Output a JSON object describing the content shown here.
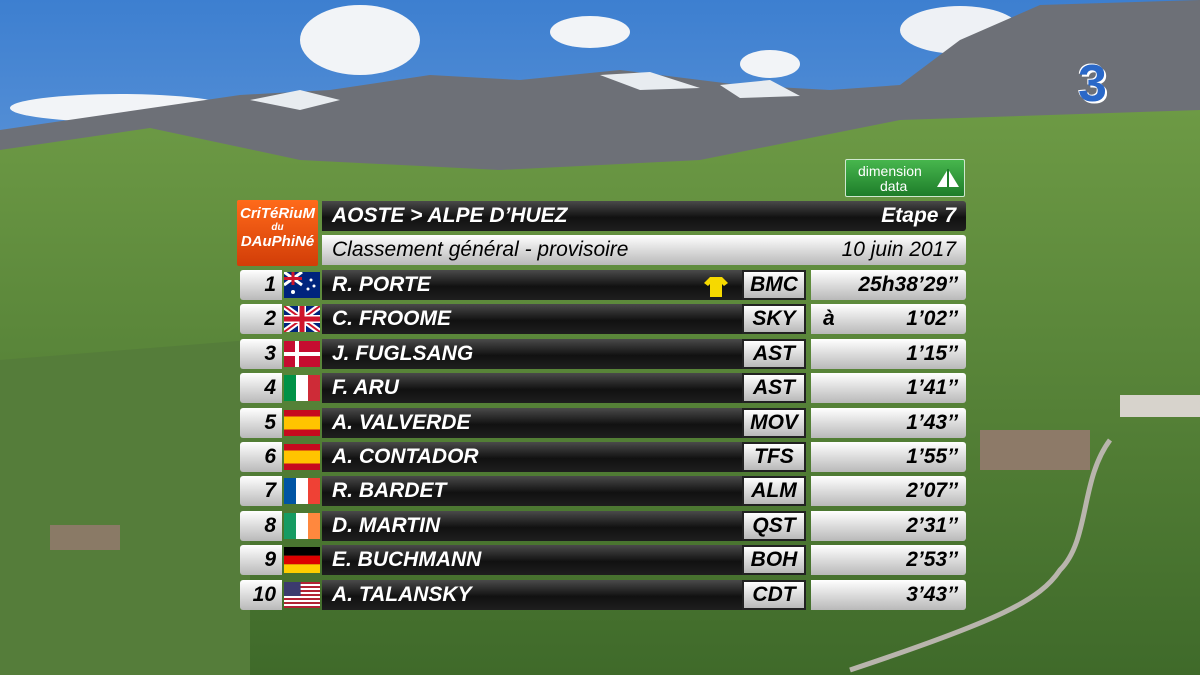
{
  "broadcaster": {
    "logo": "3"
  },
  "sponsor": {
    "line1": "dimension",
    "line2": "data"
  },
  "race_logo": {
    "line1": "CriTéRiuM",
    "line2": "du",
    "line3": "DAuPhiNé"
  },
  "header": {
    "stage_route": "AOSTE > ALPE D’HUEZ",
    "stage": "Etape 7",
    "classification": "Classement général - provisoire",
    "date": "10 juin 2017"
  },
  "table": {
    "rows": [
      {
        "rank": 1,
        "rider": "R. PORTE",
        "team": "BMC",
        "time": "25h38’29’’"
      },
      {
        "rank": 2,
        "rider": "C. FROOME",
        "team": "SKY",
        "prefix": "à",
        "time": "1’02’’"
      },
      {
        "rank": 3,
        "rider": "J. FUGLSANG",
        "team": "AST",
        "time": "1’15’’"
      },
      {
        "rank": 4,
        "rider": "F. ARU",
        "team": "AST",
        "time": "1’41’’"
      },
      {
        "rank": 5,
        "rider": "A. VALVERDE",
        "team": "MOV",
        "time": "1’43’’"
      },
      {
        "rank": 6,
        "rider": "A. CONTADOR",
        "team": "TFS",
        "time": "1’55’’"
      },
      {
        "rank": 7,
        "rider": "R. BARDET",
        "team": "ALM",
        "time": "2’07’’"
      },
      {
        "rank": 8,
        "rider": "D. MARTIN",
        "team": "QST",
        "time": "2’31’’"
      },
      {
        "rank": 9,
        "rider": "E. BUCHMANN",
        "team": "BOH",
        "time": "2’53’’"
      },
      {
        "rank": 10,
        "rider": "A. TALANSKY",
        "team": "CDT",
        "time": "3’43’’"
      }
    ]
  }
}
